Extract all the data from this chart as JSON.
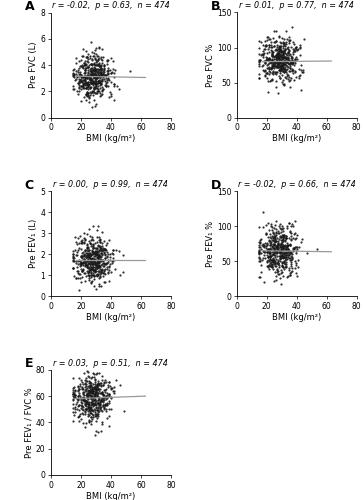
{
  "panels": [
    {
      "label": "A",
      "corr_text": "r = -0.02,  p = 0.63,  n = 474",
      "ylabel": "Pre FVC (L)",
      "xlabel": "BMI (kg/m²)",
      "xlim": [
        0,
        80
      ],
      "ylim": [
        0,
        8
      ],
      "yticks": [
        0,
        2,
        4,
        6,
        8
      ],
      "xticks": [
        0,
        20,
        40,
        60,
        80
      ],
      "slope": -0.002,
      "intercept": 3.18,
      "x_line_start": 17,
      "x_line_end": 63
    },
    {
      "label": "B",
      "corr_text": "r = 0.01,  p = 0.77,  n = 474",
      "ylabel": "Pre FVC %",
      "xlabel": "BMI (kg/m²)",
      "xlim": [
        0,
        80
      ],
      "ylim": [
        0,
        150
      ],
      "yticks": [
        0,
        50,
        100,
        150
      ],
      "xticks": [
        0,
        20,
        40,
        60,
        80
      ],
      "slope": 0.02,
      "intercept": 79.5,
      "x_line_start": 17,
      "x_line_end": 63
    },
    {
      "label": "C",
      "corr_text": "r = 0.00,  p = 0.99,  n = 474",
      "ylabel": "Pre FEV₁ (L)",
      "xlabel": "BMI (kg/m²)",
      "xlim": [
        0,
        80
      ],
      "ylim": [
        0,
        5
      ],
      "yticks": [
        0,
        1,
        2,
        3,
        4,
        5
      ],
      "xticks": [
        0,
        20,
        40,
        60,
        80
      ],
      "slope": 0.0,
      "intercept": 1.72,
      "x_line_start": 17,
      "x_line_end": 63
    },
    {
      "label": "D",
      "corr_text": "r = -0.02,  p = 0.66,  n = 474",
      "ylabel": "Pre FEV₁ %",
      "xlabel": "BMI (kg/m²)",
      "xlim": [
        0,
        80
      ],
      "ylim": [
        0,
        150
      ],
      "yticks": [
        0,
        50,
        100,
        150
      ],
      "xticks": [
        0,
        20,
        40,
        60,
        80
      ],
      "slope": -0.03,
      "intercept": 65.5,
      "x_line_start": 17,
      "x_line_end": 63
    },
    {
      "label": "E",
      "corr_text": "r = 0.03,  p = 0.51,  n = 474",
      "ylabel": "Pre FEV₁ / FVC %",
      "xlabel": "BMI (kg/m²)",
      "xlim": [
        0,
        80
      ],
      "ylim": [
        0,
        80
      ],
      "yticks": [
        0,
        20,
        40,
        60,
        80
      ],
      "xticks": [
        0,
        20,
        40,
        60,
        80
      ],
      "slope": 0.04,
      "intercept": 57.5,
      "x_line_start": 17,
      "x_line_end": 63
    }
  ],
  "n": 474,
  "dot_color": "#1a1a1a",
  "line_color": "#999999",
  "dot_size": 2.5,
  "background_color": "#ffffff",
  "seed": 42,
  "scatter_params": [
    {
      "x_center": 28,
      "y_center": 3.1,
      "x_std": 6.5,
      "y_std": 0.85,
      "x_min": 15,
      "x_max": 65,
      "y_min": 0.6,
      "y_max": 6.8
    },
    {
      "x_center": 28,
      "y_center": 82,
      "x_std": 6.5,
      "y_std": 16,
      "x_min": 15,
      "x_max": 65,
      "y_min": 32,
      "y_max": 130
    },
    {
      "x_center": 28,
      "y_center": 1.72,
      "x_std": 6.5,
      "y_std": 0.55,
      "x_min": 15,
      "x_max": 65,
      "y_min": 0.3,
      "y_max": 4.3
    },
    {
      "x_center": 28,
      "y_center": 65,
      "x_std": 6.5,
      "y_std": 17,
      "x_min": 15,
      "x_max": 65,
      "y_min": 18,
      "y_max": 130
    },
    {
      "x_center": 28,
      "y_center": 59,
      "x_std": 6.5,
      "y_std": 9,
      "x_min": 15,
      "x_max": 65,
      "y_min": 22,
      "y_max": 79
    }
  ]
}
